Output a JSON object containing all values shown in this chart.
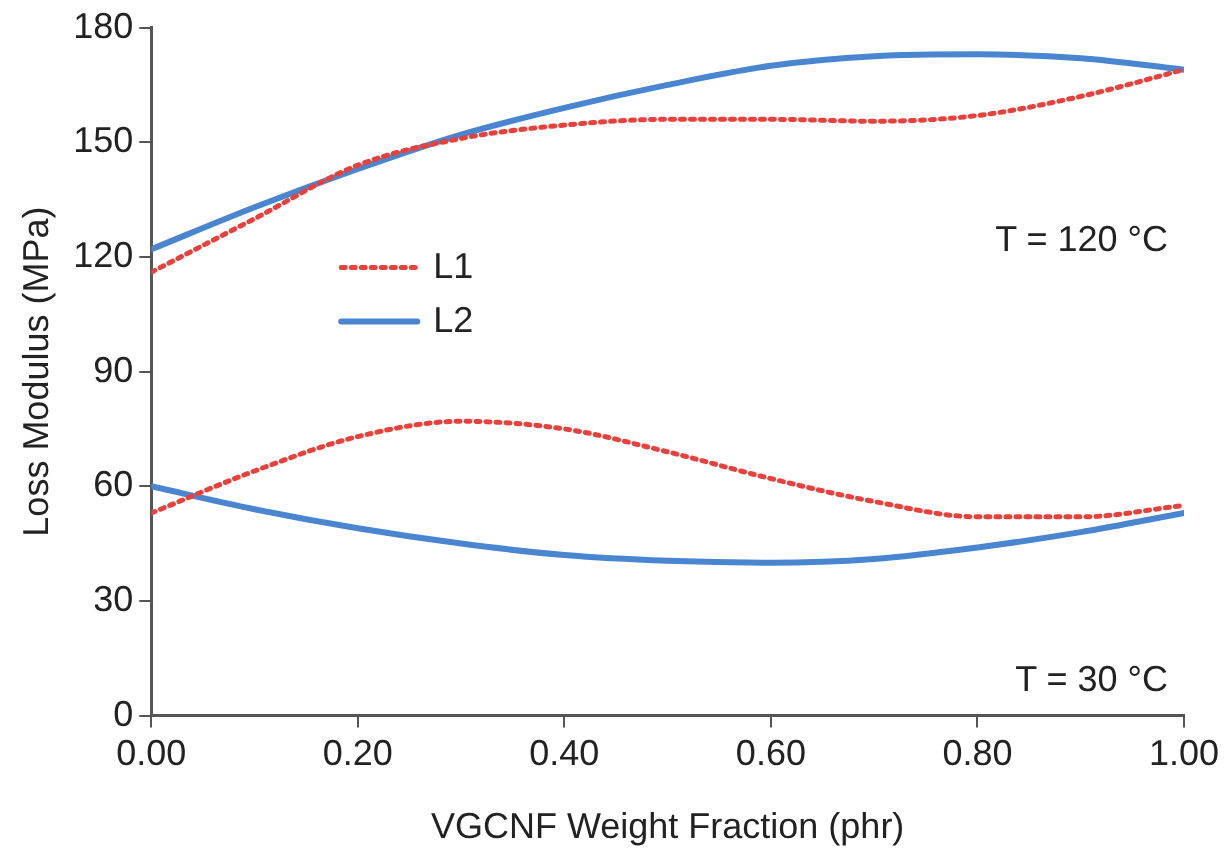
{
  "chart_data": {
    "type": "line",
    "xlabel": "VGCNF Weight Fraction (phr)",
    "ylabel": "Loss Modulus (MPa)",
    "x": [
      0,
      0.1,
      0.2,
      0.3,
      0.4,
      0.5,
      0.6,
      0.7,
      0.8,
      0.9,
      1
    ],
    "series": [
      {
        "name": "L1",
        "color": "#e8413c",
        "line_style": "dotted",
        "values": [
          116,
          130,
          144,
          151,
          154.5,
          156,
          156,
          155.5,
          157,
          162,
          169
        ]
      },
      {
        "name": "L2",
        "color": "#4a86d0",
        "line_style": "solid",
        "values": [
          122,
          133,
          143,
          152,
          159,
          165,
          170,
          172.5,
          173,
          172,
          169
        ]
      },
      {
        "color": "#e8413c",
        "line_style": "dotted",
        "values": [
          53,
          64,
          73,
          77,
          75,
          69,
          62,
          56,
          52,
          52,
          55
        ]
      },
      {
        "color": "#4a86d0",
        "line_style": "solid",
        "values": [
          60,
          54,
          49,
          45,
          42,
          40.5,
          40,
          41,
          44,
          48,
          53
        ]
      }
    ],
    "xlim": [
      0,
      1
    ],
    "xticks": [
      {
        "value": 0,
        "label": "0.00"
      },
      {
        "value": 0.2,
        "label": "0.20"
      },
      {
        "value": 0.4,
        "label": "0.40"
      },
      {
        "value": 0.6,
        "label": "0.60"
      },
      {
        "value": 0.8,
        "label": "0.80"
      },
      {
        "value": 1,
        "label": "1.00"
      }
    ],
    "ylim": [
      0,
      180
    ],
    "yticks": [
      0,
      30,
      60,
      90,
      120,
      150,
      180
    ],
    "grid": false,
    "legend": "left",
    "marker": "none",
    "annotations": [
      "T = 120 °C",
      "T = 30 °C"
    ]
  }
}
